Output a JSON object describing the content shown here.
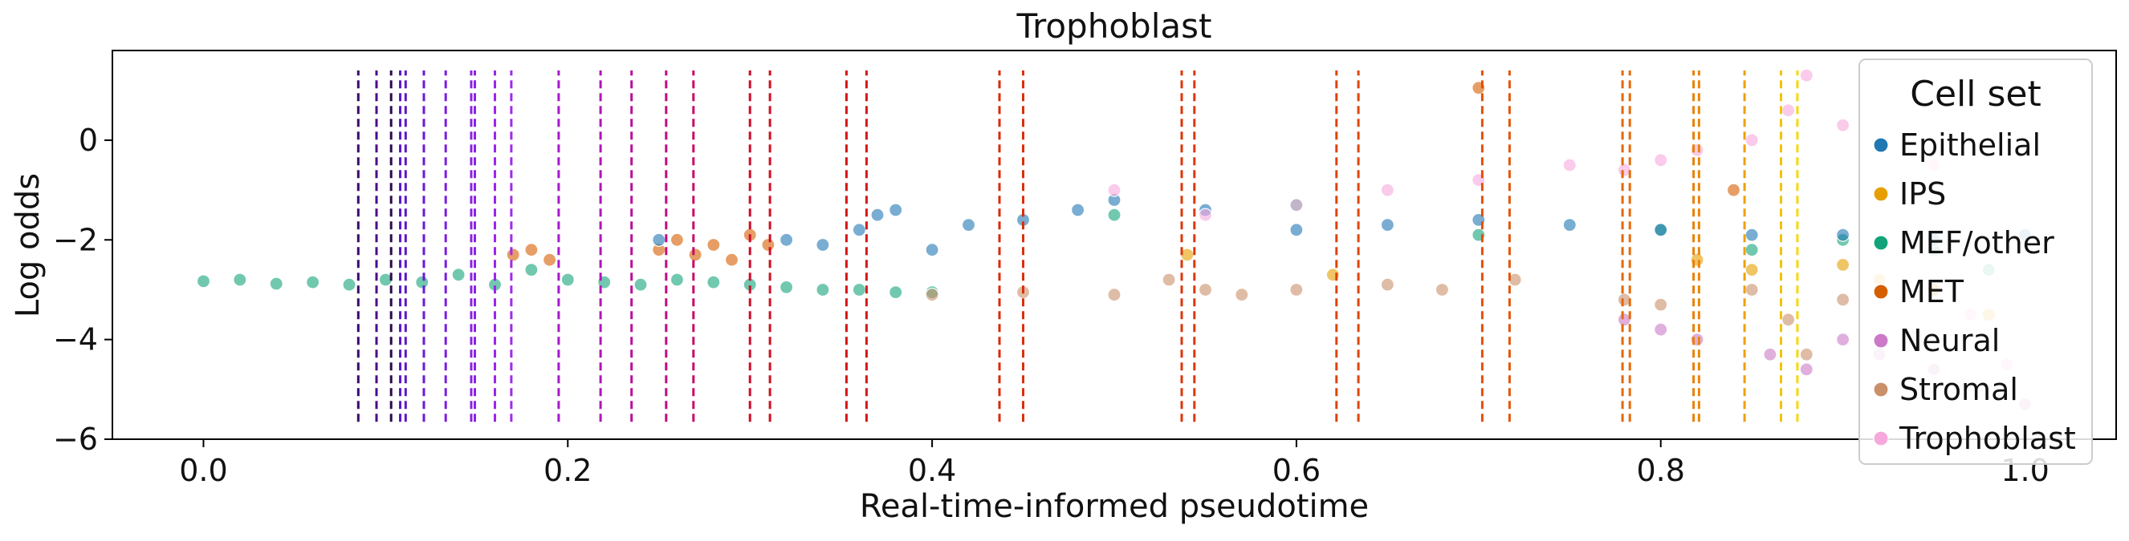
{
  "chart_data": {
    "type": "scatter",
    "title": "Trophoblast",
    "xlabel": "Real-time-informed pseudotime",
    "ylabel": "Log odds",
    "xlim": [
      -0.05,
      1.05
    ],
    "ylim": [
      -6,
      1.8
    ],
    "xticks": [
      {
        "value": 0.0,
        "label": "0.0"
      },
      {
        "value": 0.2,
        "label": "0.2"
      },
      {
        "value": 0.4,
        "label": "0.4"
      },
      {
        "value": 0.6,
        "label": "0.6"
      },
      {
        "value": 0.8,
        "label": "0.8"
      },
      {
        "value": 1.0,
        "label": "1.0"
      }
    ],
    "yticks": [
      {
        "value": 0,
        "label": "0"
      },
      {
        "value": -2,
        "label": "−2"
      },
      {
        "value": -4,
        "label": "−4"
      },
      {
        "value": -6,
        "label": "−6"
      }
    ],
    "grid": false,
    "legend": {
      "title": "Cell set",
      "placement": "right",
      "items": [
        {
          "name": "Epithelial",
          "color": "#1f77b4"
        },
        {
          "name": "IPS",
          "color": "#e69f00"
        },
        {
          "name": "MEF/other",
          "color": "#12a37a"
        },
        {
          "name": "MET",
          "color": "#d55e00"
        },
        {
          "name": "Neural",
          "color": "#cc79c7"
        },
        {
          "name": "Stromal",
          "color": "#c9906a"
        },
        {
          "name": "Trophoblast",
          "color": "#f6a8dc"
        }
      ]
    },
    "series": [
      {
        "name": "MEF/other",
        "color": "#12a37a",
        "points": [
          [
            0.0,
            -2.83
          ],
          [
            0.02,
            -2.8
          ],
          [
            0.04,
            -2.88
          ],
          [
            0.06,
            -2.85
          ],
          [
            0.08,
            -2.9
          ],
          [
            0.1,
            -2.8
          ],
          [
            0.12,
            -2.85
          ],
          [
            0.14,
            -2.7
          ],
          [
            0.16,
            -2.9
          ],
          [
            0.18,
            -2.6
          ],
          [
            0.2,
            -2.8
          ],
          [
            0.22,
            -2.85
          ],
          [
            0.24,
            -2.9
          ],
          [
            0.26,
            -2.8
          ],
          [
            0.28,
            -2.85
          ],
          [
            0.3,
            -2.9
          ],
          [
            0.32,
            -2.95
          ],
          [
            0.34,
            -3.0
          ],
          [
            0.36,
            -3.0
          ],
          [
            0.38,
            -3.05
          ],
          [
            0.4,
            -3.05
          ],
          [
            0.5,
            -1.5
          ],
          [
            0.6,
            -1.3
          ],
          [
            0.7,
            -1.9
          ],
          [
            0.8,
            -1.8
          ],
          [
            0.85,
            -2.2
          ],
          [
            0.9,
            -2.0
          ],
          [
            0.95,
            -2.2
          ],
          [
            0.98,
            -2.6
          ]
        ]
      },
      {
        "name": "MET",
        "color": "#d55e00",
        "points": [
          [
            0.17,
            -2.3
          ],
          [
            0.18,
            -2.2
          ],
          [
            0.19,
            -2.4
          ],
          [
            0.25,
            -2.2
          ],
          [
            0.26,
            -2.0
          ],
          [
            0.27,
            -2.3
          ],
          [
            0.28,
            -2.1
          ],
          [
            0.29,
            -2.4
          ],
          [
            0.3,
            -1.9
          ],
          [
            0.31,
            -2.1
          ],
          [
            0.7,
            1.05
          ],
          [
            0.84,
            -1.0
          ]
        ]
      },
      {
        "name": "Epithelial",
        "color": "#1f77b4",
        "points": [
          [
            0.25,
            -2.0
          ],
          [
            0.32,
            -2.0
          ],
          [
            0.34,
            -2.1
          ],
          [
            0.36,
            -1.8
          ],
          [
            0.37,
            -1.5
          ],
          [
            0.38,
            -1.4
          ],
          [
            0.4,
            -2.2
          ],
          [
            0.42,
            -1.7
          ],
          [
            0.45,
            -1.6
          ],
          [
            0.48,
            -1.4
          ],
          [
            0.5,
            -1.2
          ],
          [
            0.55,
            -1.4
          ],
          [
            0.6,
            -1.8
          ],
          [
            0.65,
            -1.7
          ],
          [
            0.7,
            -1.6
          ],
          [
            0.75,
            -1.7
          ],
          [
            0.8,
            -1.8
          ],
          [
            0.85,
            -1.9
          ],
          [
            0.9,
            -1.9
          ],
          [
            0.95,
            -2.0
          ],
          [
            1.0,
            -1.9
          ]
        ]
      },
      {
        "name": "Stromal",
        "color": "#c9906a",
        "points": [
          [
            0.4,
            -3.1
          ],
          [
            0.45,
            -3.05
          ],
          [
            0.5,
            -3.1
          ],
          [
            0.53,
            -2.8
          ],
          [
            0.55,
            -3.0
          ],
          [
            0.57,
            -3.1
          ],
          [
            0.6,
            -3.0
          ],
          [
            0.65,
            -2.9
          ],
          [
            0.68,
            -3.0
          ],
          [
            0.72,
            -2.8
          ],
          [
            0.78,
            -3.2
          ],
          [
            0.8,
            -3.3
          ],
          [
            0.85,
            -3.0
          ],
          [
            0.87,
            -3.6
          ],
          [
            0.88,
            -4.3
          ],
          [
            0.9,
            -3.2
          ],
          [
            0.95,
            -3.0
          ]
        ]
      },
      {
        "name": "Trophoblast",
        "color": "#f6a8dc",
        "points": [
          [
            0.5,
            -1.0
          ],
          [
            0.55,
            -1.5
          ],
          [
            0.6,
            -1.3
          ],
          [
            0.65,
            -1.0
          ],
          [
            0.7,
            -0.8
          ],
          [
            0.75,
            -0.5
          ],
          [
            0.78,
            -0.6
          ],
          [
            0.8,
            -0.4
          ],
          [
            0.82,
            -0.2
          ],
          [
            0.85,
            0.0
          ],
          [
            0.87,
            0.6
          ],
          [
            0.88,
            1.3
          ],
          [
            0.9,
            0.3
          ],
          [
            0.92,
            -0.1
          ],
          [
            0.95,
            -0.5
          ],
          [
            0.97,
            -3.5
          ],
          [
            0.99,
            -4.5
          ]
        ]
      },
      {
        "name": "Neural",
        "color": "#cc79c7",
        "points": [
          [
            0.78,
            -3.6
          ],
          [
            0.8,
            -3.8
          ],
          [
            0.82,
            -4.0
          ],
          [
            0.86,
            -4.3
          ],
          [
            0.88,
            -4.6
          ],
          [
            0.9,
            -4.0
          ],
          [
            0.92,
            -4.3
          ],
          [
            0.95,
            -4.6
          ],
          [
            1.0,
            -5.3
          ]
        ]
      },
      {
        "name": "IPS",
        "color": "#e69f00",
        "points": [
          [
            0.54,
            -2.3
          ],
          [
            0.62,
            -2.7
          ],
          [
            0.82,
            -2.4
          ],
          [
            0.85,
            -2.6
          ],
          [
            0.9,
            -2.5
          ],
          [
            0.92,
            -2.8
          ],
          [
            0.95,
            -3.0
          ],
          [
            0.98,
            -3.5
          ]
        ]
      }
    ],
    "vlines": [
      {
        "x": 0.085,
        "color": "#3a0a6e"
      },
      {
        "x": 0.095,
        "color": "#4b0a8a"
      },
      {
        "x": 0.103,
        "color": "#2a0a4a"
      },
      {
        "x": 0.108,
        "color": "#5b18c8"
      },
      {
        "x": 0.111,
        "color": "#5b18c8"
      },
      {
        "x": 0.121,
        "color": "#6a1ad6"
      },
      {
        "x": 0.133,
        "color": "#7a1ee0"
      },
      {
        "x": 0.147,
        "color": "#8a22e6"
      },
      {
        "x": 0.149,
        "color": "#8a22e6"
      },
      {
        "x": 0.16,
        "color": "#9a26ea"
      },
      {
        "x": 0.169,
        "color": "#a02aea"
      },
      {
        "x": 0.195,
        "color": "#a818d0"
      },
      {
        "x": 0.218,
        "color": "#b014b8"
      },
      {
        "x": 0.235,
        "color": "#b8109a"
      },
      {
        "x": 0.254,
        "color": "#c00c7e"
      },
      {
        "x": 0.269,
        "color": "#c80a66"
      },
      {
        "x": 0.3,
        "color": "#cc0c2a"
      },
      {
        "x": 0.311,
        "color": "#d01020"
      },
      {
        "x": 0.353,
        "color": "#d41414"
      },
      {
        "x": 0.364,
        "color": "#d41818"
      },
      {
        "x": 0.437,
        "color": "#d82a0a"
      },
      {
        "x": 0.45,
        "color": "#da2e0a"
      },
      {
        "x": 0.537,
        "color": "#dc360a"
      },
      {
        "x": 0.544,
        "color": "#dc380a"
      },
      {
        "x": 0.622,
        "color": "#e0420a"
      },
      {
        "x": 0.634,
        "color": "#e0460a"
      },
      {
        "x": 0.702,
        "color": "#e2500a"
      },
      {
        "x": 0.717,
        "color": "#e2560a"
      },
      {
        "x": 0.779,
        "color": "#e4660a"
      },
      {
        "x": 0.783,
        "color": "#e66a0a"
      },
      {
        "x": 0.818,
        "color": "#e8800a"
      },
      {
        "x": 0.821,
        "color": "#ea860a"
      },
      {
        "x": 0.846,
        "color": "#eea00a"
      },
      {
        "x": 0.866,
        "color": "#f2c20a"
      },
      {
        "x": 0.875,
        "color": "#f6d80a"
      }
    ],
    "vline_range": [
      -5.65,
      1.4
    ]
  }
}
